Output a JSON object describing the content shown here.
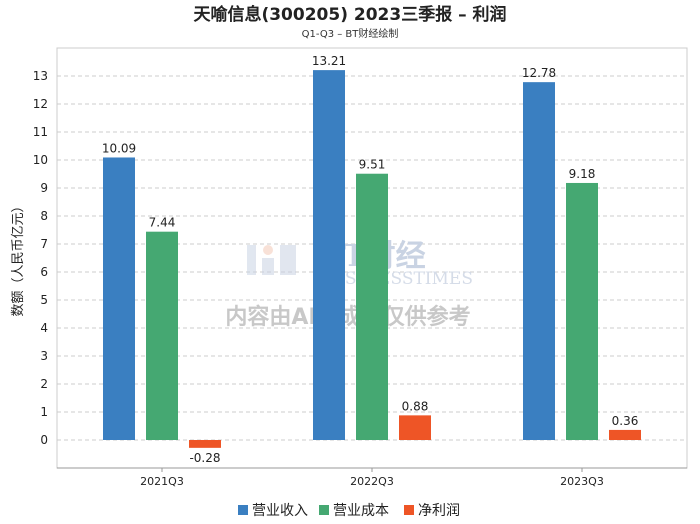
{
  "chart_data": {
    "type": "bar",
    "title": "天喻信息(300205) 2023三季报 – 利润",
    "subtitle": "Q1-Q3 – BT财经绘制",
    "ylabel": "数额（人民币亿元）",
    "xlabel": "",
    "categories": [
      "2021Q3",
      "2022Q3",
      "2023Q3"
    ],
    "series": [
      {
        "name": "营业收入",
        "color": "#3a7fc1",
        "values": [
          10.09,
          13.21,
          12.78
        ],
        "labels": [
          "10.09",
          "13.21",
          "12.78"
        ]
      },
      {
        "name": "营业成本",
        "color": "#45a872",
        "values": [
          7.44,
          9.51,
          9.18
        ],
        "labels": [
          "7.44",
          "9.51",
          "9.18"
        ]
      },
      {
        "name": "净利润",
        "color": "#ee5526",
        "values": [
          -0.28,
          0.88,
          0.36
        ],
        "labels": [
          "-0.28",
          "0.88",
          "0.36"
        ]
      }
    ],
    "ylim": [
      -1,
      14
    ],
    "yticks": [
      0,
      1,
      2,
      3,
      4,
      5,
      6,
      7,
      8,
      9,
      10,
      11,
      12,
      13
    ],
    "grid": true,
    "legend": "bottom-center"
  },
  "watermark": {
    "brand": "BT财经",
    "brand_sub": "BUSINESSTIMES",
    "notice": "内容由AI生成，仅供参考"
  }
}
